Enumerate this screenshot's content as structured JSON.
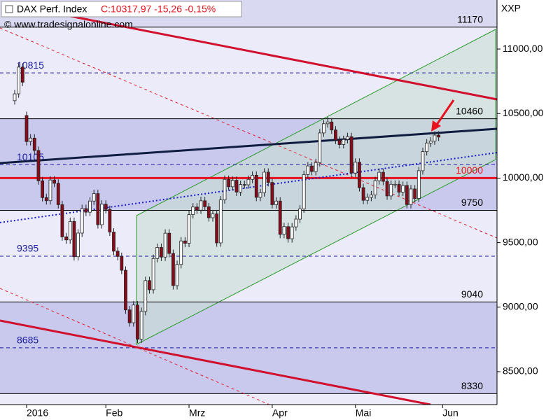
{
  "chart_data": {
    "type": "candlestick",
    "title": "DAX Perf. Index",
    "quote": "C:10317,97 -15,26 -0,15%",
    "copyright": "© www.tradesignalonline.com",
    "axis_label": "XXP",
    "categories": [
      null,
      null,
      null,
      "2016",
      null,
      null,
      null,
      null,
      null,
      null,
      null,
      null,
      null,
      null,
      null,
      null,
      null,
      null,
      null,
      null,
      null,
      null,
      null,
      "Feb",
      null,
      null,
      null,
      null,
      null,
      null,
      null,
      null,
      null,
      null,
      null,
      null,
      null,
      null,
      null,
      null,
      null,
      null,
      null,
      null,
      "Mrz",
      null,
      null,
      null,
      null,
      null,
      null,
      null,
      null,
      null,
      null,
      null,
      null,
      null,
      null,
      null,
      null,
      null,
      null,
      null,
      null,
      "Apr",
      null,
      null,
      null,
      null,
      null,
      null,
      null,
      null,
      null,
      null,
      null,
      null,
      null,
      null,
      null,
      null,
      null,
      null,
      null,
      null,
      "Mai",
      null,
      null,
      null,
      null,
      null,
      null,
      null,
      null,
      null,
      null,
      null,
      null,
      null,
      null,
      null,
      null,
      null,
      null,
      null,
      null,
      null,
      "Jun",
      null,
      null,
      null,
      null,
      null,
      null,
      null,
      null,
      null,
      null,
      null,
      null,
      null
    ],
    "open": [
      10600,
      10653,
      10860,
      10485,
      10283,
      10310,
      10214,
      9979,
      9849,
      9825,
      9985,
      9960,
      9794,
      9545,
      9521,
      9664,
      9391,
      9574,
      9764,
      9736,
      9822,
      9880,
      9639,
      9798,
      9757,
      9582,
      9434,
      9393,
      9286,
      8979,
      8879,
      9017,
      8752,
      8967,
      9206,
      9135,
      9377,
      9463,
      9388,
      9573,
      9416,
      9167,
      9331,
      9513,
      9495,
      9717,
      9776,
      9752,
      9824,
      9778,
      9693,
      9723,
      9498,
      9831,
      9990,
      9933,
      9983,
      9892,
      9950,
      9948,
      9990,
      10022,
      9851,
      9887,
      10046,
      9966,
      9794,
      9822,
      9564,
      9624,
      9530,
      9622,
      9682,
      9761,
      10027,
      10094,
      10051,
      10120,
      10350,
      10421,
      10435,
      10373,
      10294,
      10260,
      10299,
      10321,
      10039,
      10123,
      9926,
      9828,
      9851,
      9870,
      9980,
      10045,
      9975,
      9862,
      9952,
      9952,
      9891,
      9943,
      9795,
      9916,
      9842,
      10057,
      10205,
      10272,
      10287,
      10333,
      null,
      null,
      null,
      null,
      null,
      null,
      null,
      null,
      null,
      null,
      null,
      null,
      null,
      null
    ],
    "high": [
      10683,
      10890,
      10890,
      10515,
      10340,
      10340,
      10244,
      10009,
      9879,
      10015,
      10015,
      9990,
      9824,
      9575,
      9694,
      9694,
      9604,
      9794,
      9794,
      9852,
      9910,
      9910,
      9828,
      9828,
      9787,
      9612,
      9464,
      9423,
      9316,
      9009,
      9047,
      9047,
      8997,
      9236,
      9236,
      9407,
      9493,
      9493,
      9603,
      9603,
      9446,
      9361,
      9543,
      9543,
      9747,
      9806,
      9806,
      9854,
      9854,
      9808,
      9753,
      9753,
      9861,
      10020,
      10020,
      10013,
      10013,
      9980,
      9980,
      10020,
      10052,
      10052,
      9917,
      10076,
      10076,
      9996,
      9852,
      9852,
      9654,
      9654,
      9652,
      9712,
      9791,
      10057,
      10124,
      10124,
      10150,
      10380,
      10451,
      10474,
      10465,
      10403,
      10324,
      10329,
      10351,
      10351,
      10153,
      10153,
      9956,
      9881,
      9900,
      10010,
      10075,
      10075,
      10005,
      9982,
      9982,
      9982,
      9973,
      9973,
      9946,
      9946,
      10087,
      10235,
      10302,
      10317,
      10363,
      10363,
      null,
      null,
      null,
      null,
      null,
      null,
      null,
      null,
      null,
      null,
      null,
      null,
      null,
      null
    ],
    "low": [
      10570,
      10623,
      10713,
      10253,
      10253,
      10184,
      9949,
      9819,
      9795,
      9795,
      9930,
      9764,
      9515,
      9491,
      9491,
      9361,
      9361,
      9544,
      9706,
      9706,
      9792,
      9609,
      9609,
      9727,
      9552,
      9404,
      9363,
      9256,
      8949,
      8849,
      8849,
      8722,
      8722,
      8937,
      9105,
      9105,
      9347,
      9358,
      9358,
      9386,
      9137,
      9137,
      9301,
      9465,
      9465,
      9687,
      9722,
      9722,
      9748,
      9663,
      9663,
      9468,
      9468,
      9801,
      9903,
      9903,
      9862,
      9862,
      9918,
      9918,
      9960,
      9821,
      9821,
      9857,
      9936,
      9764,
      9764,
      9534,
      9534,
      9500,
      9500,
      9592,
      9652,
      9731,
      9997,
      10021,
      10021,
      10090,
      10320,
      10391,
      10343,
      10264,
      10230,
      10230,
      10269,
      10009,
      10009,
      9896,
      9798,
      9798,
      9821,
      9840,
      9950,
      9945,
      9832,
      9832,
      9922,
      9861,
      9861,
      9765,
      9765,
      9812,
      9812,
      10027,
      10175,
      10242,
      10257,
      10288,
      null,
      null,
      null,
      null,
      null,
      null,
      null,
      null,
      null,
      null,
      null,
      null,
      null,
      null
    ],
    "close": [
      10653,
      10860,
      10743,
      10283,
      10310,
      10214,
      9979,
      9849,
      9825,
      9985,
      9960,
      9794,
      9545,
      9521,
      9664,
      9391,
      9574,
      9764,
      9736,
      9822,
      9880,
      9639,
      9798,
      9757,
      9582,
      9434,
      9393,
      9286,
      8979,
      8879,
      9017,
      8752,
      8967,
      9206,
      9135,
      9377,
      9463,
      9388,
      9573,
      9416,
      9167,
      9331,
      9513,
      9495,
      9717,
      9776,
      9752,
      9824,
      9778,
      9693,
      9723,
      9498,
      9831,
      9990,
      9933,
      9983,
      9892,
      9950,
      9948,
      9990,
      10022,
      9851,
      9887,
      10046,
      9966,
      9794,
      9822,
      9564,
      9624,
      9530,
      9622,
      9682,
      9761,
      10027,
      10094,
      10051,
      10120,
      10350,
      10421,
      10435,
      10373,
      10294,
      10260,
      10299,
      10321,
      10039,
      10123,
      9926,
      9828,
      9851,
      9870,
      9980,
      10045,
      9975,
      9862,
      9952,
      9952,
      9891,
      9943,
      9795,
      9916,
      9842,
      10057,
      10205,
      10272,
      10287,
      10333,
      10317.97,
      null,
      null,
      null,
      null,
      null,
      null,
      null,
      null,
      null,
      null,
      null,
      null,
      null,
      null
    ],
    "up_color": "#ffffff",
    "down_color": "#8b0a1a",
    "ylim": [
      8245,
      11380
    ],
    "yticks": [
      {
        "value": 8500,
        "label": "8500,00"
      },
      {
        "value": 9000,
        "label": "9000,00"
      },
      {
        "value": 9500,
        "label": "9500,00"
      },
      {
        "value": 10000,
        "label": "10000,00"
      },
      {
        "value": 10500,
        "label": "10500,00"
      },
      {
        "value": 11000,
        "label": "11000,00"
      }
    ],
    "levels": [
      {
        "value": 11170,
        "style": "solid",
        "color": "#000000"
      },
      {
        "value": 10815,
        "style": "dashed",
        "color": "#1a1aa0"
      },
      {
        "value": 10460,
        "style": "solid",
        "color": "#000000"
      },
      {
        "value": 10105,
        "style": "dashed",
        "color": "#1a1aa0"
      },
      {
        "value": 10000,
        "style": "bold",
        "color": "#e8101c"
      },
      {
        "value": 9750,
        "style": "solid",
        "color": "#000000"
      },
      {
        "value": 9395,
        "style": "dashed",
        "color": "#1a1aa0"
      },
      {
        "value": 9040,
        "style": "solid",
        "color": "#000000"
      },
      {
        "value": 8685,
        "style": "dashed",
        "color": "#1a1aa0"
      },
      {
        "value": 8330,
        "style": "solid",
        "color": "#000000"
      }
    ]
  }
}
